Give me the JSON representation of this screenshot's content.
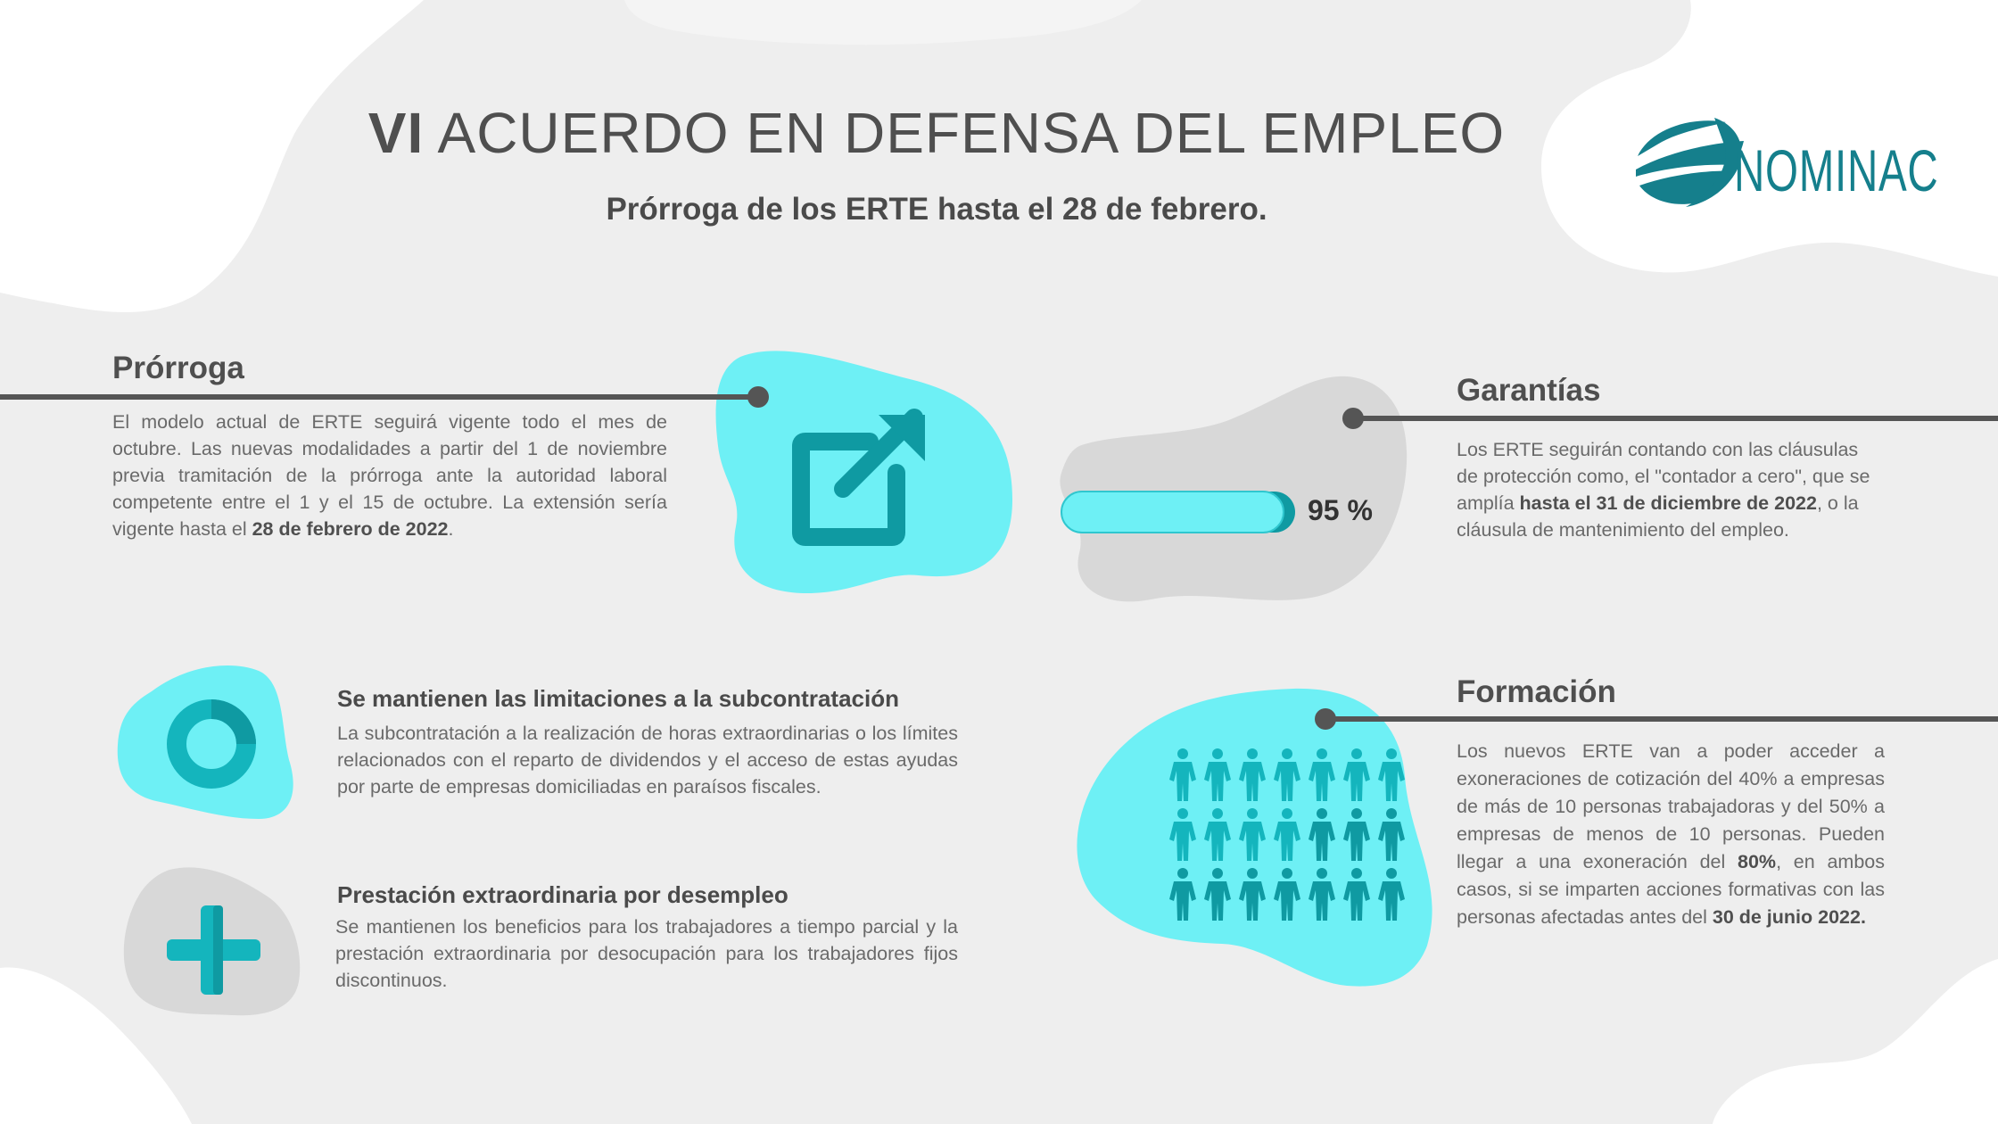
{
  "header": {
    "title_bold": "VI",
    "title_rest": "ACUERDO EN DEFENSA DEL EMPLEO",
    "subtitle_1": "Prórroga de los ",
    "subtitle_bold": "ERTE",
    "subtitle_2": " hasta el 28 de febrero.",
    "logo_text": "NOMINAC"
  },
  "prorroga": {
    "heading": "Prórroga",
    "text": "El modelo actual de ERTE seguirá vigente todo el mes de octubre. Las nuevas modalidades a partir del 1 de noviembre previa tramitación de la prórroga ante la autoridad laboral competente entre el 1 y el 15 de octubre. La extensión sería vigente hasta el ",
    "text_bold": "28 de febrero de 2022",
    "text_end": ".",
    "icon": "external-link-icon"
  },
  "garantias": {
    "heading": "Garantías",
    "text_1": "Los ERTE seguirán contando con las cláusulas de protección como, el \"contador a cero\", que se amplía ",
    "text_bold": "hasta el 31 de diciembre de 2022",
    "text_2": ", o la cláusula de mantenimiento del empleo.",
    "progress_label": "95 %",
    "progress_value": 0.95
  },
  "subcontratacion": {
    "heading": "Se mantienen las limitaciones a la subcontratación",
    "text": "La subcontratación a la realización de horas extraordinarias o los límites relacionados con el reparto de dividendos y el acceso de estas ayudas por parte de empresas domiciliadas en paraísos fiscales.",
    "icon": "ring-icon"
  },
  "prestacion": {
    "heading": "Prestación extraordinaria por desempleo",
    "text": "Se mantienen los beneficios para los trabajadores a tiempo parcial y la prestación extraordinaria por desocupación para los trabajadores fijos discontinuos.",
    "icon": "plus-icon"
  },
  "formacion": {
    "heading": "Formación",
    "text_1": "Los nuevos ERTE van a poder acceder a exoneraciones de cotización del 40% a empresas de más de 10 personas trabajadoras y del 50% a empresas de menos de 10 personas. Pueden llegar a una exoneración del ",
    "text_bold_1": "80%",
    "text_2": ", en ambos casos, si se imparten acciones formativas con las personas afectadas antes del ",
    "text_bold_2": "30 de junio 2022.",
    "icon": "people-grid-icon"
  },
  "colors": {
    "background": "#eeeeee",
    "cyan_blob": "#6ef0f5",
    "teal_dark": "#0f9aa2",
    "teal_mid": "#14b5bd",
    "grey_blob": "#d6d6d6",
    "text": "#555555",
    "logo": "#157f8c"
  }
}
